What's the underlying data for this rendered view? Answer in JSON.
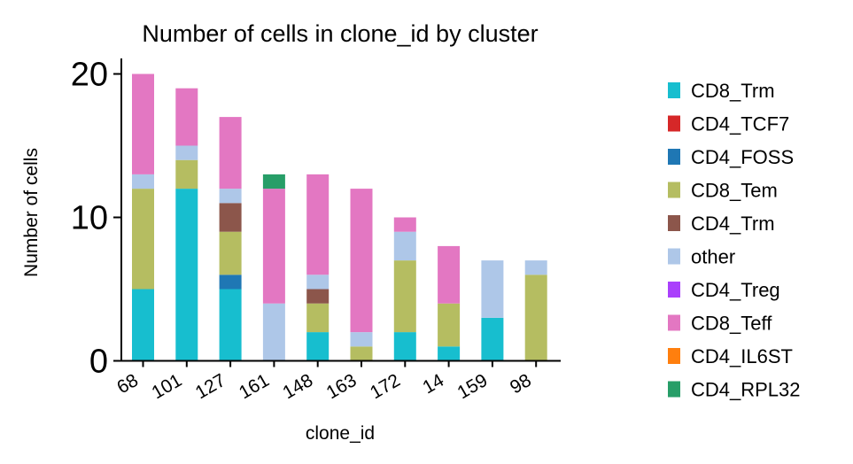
{
  "chart_data": {
    "type": "bar",
    "stacked": true,
    "title": "Number of cells in clone_id by cluster",
    "xlabel": "clone_id",
    "ylabel": "Number of cells",
    "ylim": [
      0,
      21
    ],
    "yticks": [
      0,
      10,
      20
    ],
    "categories": [
      "68",
      "101",
      "127",
      "161",
      "148",
      "163",
      "172",
      "14",
      "159",
      "98"
    ],
    "legend_position": "right",
    "grid": false,
    "series": [
      {
        "name": "CD8_Trm",
        "color": "#17becf",
        "values": [
          5,
          12,
          5,
          0,
          2,
          0,
          2,
          1,
          3,
          0
        ]
      },
      {
        "name": "CD4_TCF7",
        "color": "#d62728",
        "values": [
          0,
          0,
          0,
          0,
          0,
          0,
          0,
          0,
          0,
          0
        ]
      },
      {
        "name": "CD4_FOSS",
        "color": "#1f77b4",
        "values": [
          0,
          0,
          1,
          0,
          0,
          0,
          0,
          0,
          0,
          0
        ]
      },
      {
        "name": "CD8_Tem",
        "color": "#b5bd61",
        "values": [
          7,
          2,
          3,
          0,
          2,
          1,
          5,
          3,
          0,
          6
        ]
      },
      {
        "name": "CD4_Trm",
        "color": "#8c564b",
        "values": [
          0,
          0,
          2,
          0,
          1,
          0,
          0,
          0,
          0,
          0
        ]
      },
      {
        "name": "other",
        "color": "#aec7e8",
        "values": [
          1,
          1,
          1,
          4,
          1,
          1,
          2,
          0,
          4,
          1
        ]
      },
      {
        "name": "CD4_Treg",
        "color": "#aa40fc",
        "values": [
          0,
          0,
          0,
          0,
          0,
          0,
          0,
          0,
          0,
          0
        ]
      },
      {
        "name": "CD8_Teff",
        "color": "#e377c2",
        "values": [
          7,
          4,
          5,
          8,
          7,
          10,
          1,
          4,
          0,
          0
        ]
      },
      {
        "name": "CD4_IL6ST",
        "color": "#ff7f0e",
        "values": [
          0,
          0,
          0,
          0,
          0,
          0,
          0,
          0,
          0,
          0
        ]
      },
      {
        "name": "CD4_RPL32",
        "color": "#279e68",
        "values": [
          0,
          0,
          0,
          1,
          0,
          0,
          0,
          0,
          0,
          0
        ]
      }
    ]
  }
}
